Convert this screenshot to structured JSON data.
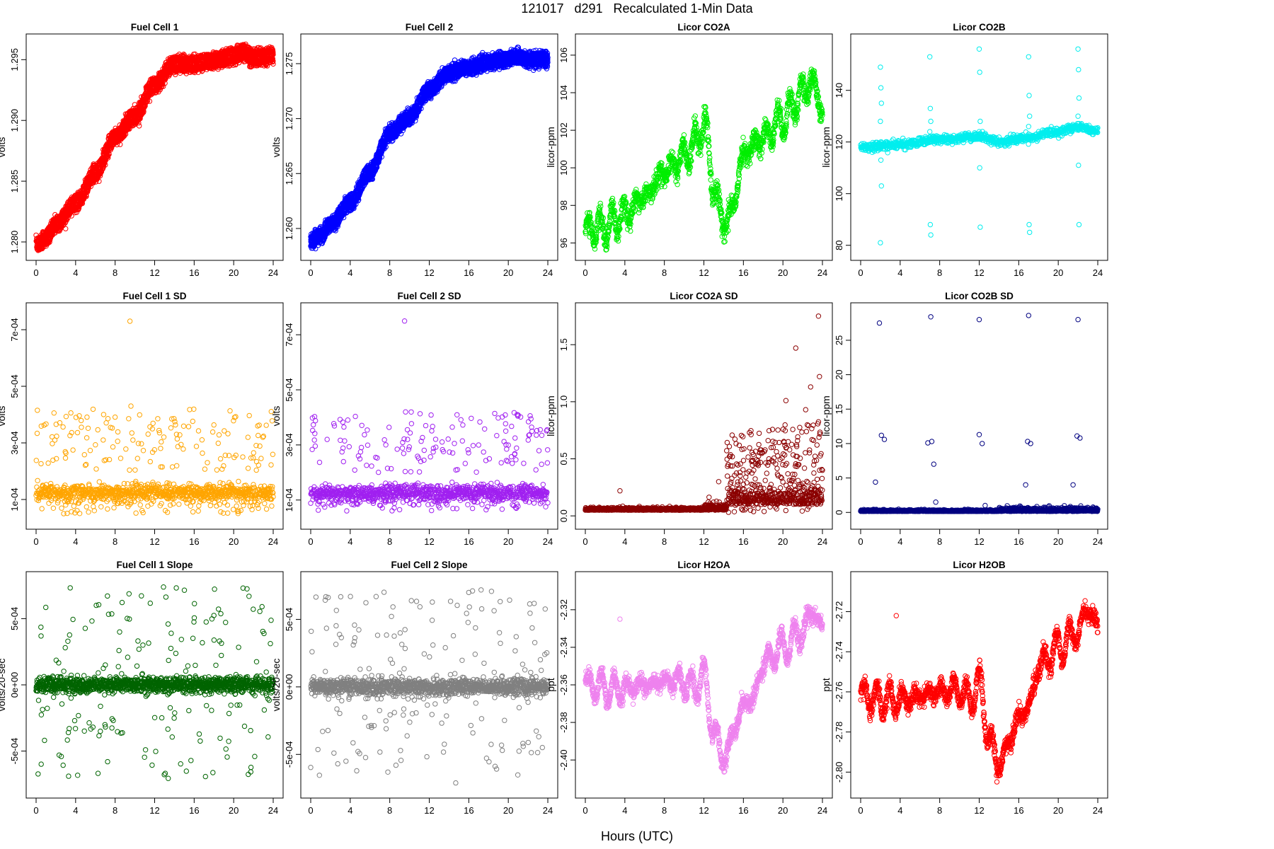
{
  "title": "121017   d291   Recalculated 1-Min Data",
  "xlabel": "Hours (UTC)",
  "chart_data": [
    {
      "type": "scatter",
      "title": "Fuel Cell 1",
      "ylabel": "volts",
      "color": "#ff0000",
      "xlim": [
        0,
        24
      ],
      "xticks": [
        0,
        4,
        8,
        12,
        16,
        20,
        24
      ],
      "ylim": [
        1.2793,
        1.2963
      ],
      "yticks": [
        1.28,
        1.285,
        1.29,
        1.295
      ],
      "ytick_labels": [
        "1.280",
        "1.285",
        "1.290",
        "1.295"
      ],
      "gen": "curve",
      "anchors": [
        [
          0,
          1.28
        ],
        [
          1,
          1.2807
        ],
        [
          2,
          1.2818
        ],
        [
          4,
          1.2835
        ],
        [
          6,
          1.286
        ],
        [
          8,
          1.289
        ],
        [
          10,
          1.2907
        ],
        [
          12,
          1.2933
        ],
        [
          14,
          1.295
        ],
        [
          16,
          1.295
        ],
        [
          18,
          1.2953
        ],
        [
          20,
          1.2957
        ],
        [
          21,
          1.296
        ],
        [
          22,
          1.2955
        ],
        [
          24,
          1.2957
        ]
      ],
      "noise": 0.0002,
      "second_offset": -0.0007,
      "point_count": 1440
    },
    {
      "type": "scatter",
      "title": "Fuel Cell 2",
      "ylabel": "volts",
      "color": "#0000ff",
      "xlim": [
        0,
        24
      ],
      "xticks": [
        0,
        4,
        8,
        12,
        16,
        20,
        24
      ],
      "ylim": [
        1.258,
        1.2768
      ],
      "yticks": [
        1.26,
        1.265,
        1.27,
        1.275
      ],
      "ytick_labels": [
        "1.260",
        "1.265",
        "1.270",
        "1.275"
      ],
      "gen": "curve",
      "anchors": [
        [
          0,
          1.2592
        ],
        [
          1,
          1.2597
        ],
        [
          2,
          1.2607
        ],
        [
          4,
          1.2627
        ],
        [
          6,
          1.2655
        ],
        [
          8,
          1.269
        ],
        [
          10,
          1.2705
        ],
        [
          12,
          1.273
        ],
        [
          14,
          1.2745
        ],
        [
          16,
          1.275
        ],
        [
          18,
          1.2755
        ],
        [
          20,
          1.2758
        ],
        [
          21,
          1.276
        ],
        [
          22,
          1.2757
        ],
        [
          24,
          1.2758
        ]
      ],
      "noise": 0.0002,
      "second_offset": -0.0007,
      "point_count": 1440
    },
    {
      "type": "scatter",
      "title": "Licor CO2A",
      "ylabel": "licor-ppm",
      "color": "#00ee00",
      "xlim": [
        0,
        24
      ],
      "xticks": [
        0,
        4,
        8,
        12,
        16,
        20,
        24
      ],
      "ylim": [
        95.6,
        106.6
      ],
      "yticks": [
        96,
        98,
        100,
        102,
        104,
        106
      ],
      "ytick_labels": [
        "96",
        "98",
        "100",
        "102",
        "104",
        "106"
      ],
      "gen": "curve",
      "anchors": [
        [
          0,
          96.7
        ],
        [
          2,
          96.8
        ],
        [
          4,
          97.5
        ],
        [
          6,
          98.5
        ],
        [
          8,
          99.8
        ],
        [
          10,
          100.6
        ],
        [
          11,
          101.2
        ],
        [
          12,
          102.4
        ],
        [
          13,
          99.0
        ],
        [
          14,
          97.0
        ],
        [
          15,
          98.0
        ],
        [
          16,
          100.8
        ],
        [
          18,
          101.6
        ],
        [
          20,
          102.6
        ],
        [
          22,
          104.0
        ],
        [
          23,
          104.6
        ],
        [
          24,
          103.0
        ]
      ],
      "osc_amp": 0.9,
      "osc_period": 1.2,
      "noise": 0.25,
      "point_count": 1440
    },
    {
      "type": "scatter",
      "title": "Licor CO2B",
      "ylabel": "licor-ppm",
      "color": "#00eeee",
      "xlim": [
        0,
        24
      ],
      "xticks": [
        0,
        4,
        8,
        12,
        16,
        20,
        24
      ],
      "ylim": [
        78,
        158
      ],
      "yticks": [
        80,
        100,
        120,
        140
      ],
      "ytick_labels": [
        "80",
        "100",
        "120",
        "140"
      ],
      "gen": "curve",
      "anchors": [
        [
          0,
          118
        ],
        [
          4,
          119
        ],
        [
          8,
          121
        ],
        [
          12,
          122
        ],
        [
          14,
          120
        ],
        [
          16,
          121
        ],
        [
          20,
          124
        ],
        [
          22,
          126
        ],
        [
          24,
          124
        ]
      ],
      "noise": 0.8,
      "spikes_at": [
        2,
        7,
        12,
        17,
        22
      ],
      "spike_values": [
        [
          149,
          141,
          135,
          128,
          113,
          103,
          81
        ],
        [
          153,
          133,
          128,
          124,
          88,
          84
        ],
        [
          156,
          147,
          128,
          124,
          110,
          87
        ],
        [
          153,
          138,
          130,
          126,
          88,
          85
        ],
        [
          156,
          148,
          137,
          130,
          111,
          88
        ]
      ],
      "point_count": 1000
    },
    {
      "type": "scatter",
      "title": "Fuel Cell 1 SD",
      "ylabel": "volts",
      "color": "#ffa500",
      "xlim": [
        0,
        24
      ],
      "xticks": [
        0,
        4,
        8,
        12,
        16,
        20,
        24
      ],
      "ylim": [
        3e-05,
        0.00076
      ],
      "yticks": [
        0.0001,
        0.0003,
        0.0005,
        0.0007
      ],
      "ytick_labels": [
        "1e-04",
        "3e-04",
        "5e-04",
        "7e-04"
      ],
      "gen": "band",
      "base": 0.000125,
      "spread": 1.5e-05,
      "upper_range": [
        0.0002,
        0.00042
      ],
      "lower_range": [
        5e-05,
        0.0001
      ],
      "outliers": [
        [
          9.5,
          0.00073
        ],
        [
          9.6,
          0.00043
        ],
        [
          9.8,
          0.00031
        ]
      ],
      "point_count": 1100
    },
    {
      "type": "scatter",
      "title": "Fuel Cell 2 SD",
      "ylabel": "volts",
      "color": "#a020f0",
      "xlim": [
        0,
        24
      ],
      "xticks": [
        0,
        4,
        8,
        12,
        16,
        20,
        24
      ],
      "ylim": [
        3e-05,
        0.00078
      ],
      "yticks": [
        0.0001,
        0.0003,
        0.0005,
        0.0007
      ],
      "ytick_labels": [
        "1e-04",
        "3e-04",
        "5e-04",
        "7e-04"
      ],
      "gen": "band",
      "base": 0.000125,
      "spread": 1.5e-05,
      "upper_range": [
        0.0002,
        0.00042
      ],
      "lower_range": [
        6e-05,
        0.0001
      ],
      "outliers": [
        [
          9.5,
          0.00075
        ],
        [
          9.6,
          0.00042
        ],
        [
          9.8,
          0.00032
        ]
      ],
      "point_count": 1100
    },
    {
      "type": "scatter",
      "title": "Licor CO2A SD",
      "ylabel": "licor-ppm",
      "color": "#8b0000",
      "xlim": [
        0,
        24
      ],
      "xticks": [
        0,
        4,
        8,
        12,
        16,
        20,
        24
      ],
      "ylim": [
        -0.03,
        1.78
      ],
      "yticks": [
        0,
        0.5,
        1,
        1.5
      ],
      "ytick_labels": [
        "0.0",
        "0.5",
        "1.0",
        "1.5"
      ],
      "gen": "step",
      "base": 0.05,
      "spread": 0.02,
      "step_at": 14.3,
      "after_base": 0.1,
      "after_range": [
        0.03,
        0.85
      ],
      "outliers": [
        [
          3.5,
          0.22
        ],
        [
          13.5,
          0.3
        ],
        [
          21.3,
          1.47
        ],
        [
          23.6,
          1.75
        ],
        [
          23.7,
          1.22
        ],
        [
          22.8,
          1.13
        ],
        [
          22.3,
          0.93
        ],
        [
          20.3,
          1.01
        ]
      ],
      "point_count": 1440
    },
    {
      "type": "scatter",
      "title": "Licor CO2B SD",
      "ylabel": "licor-ppm",
      "color": "#000080",
      "xlim": [
        0,
        24
      ],
      "xticks": [
        0,
        4,
        8,
        12,
        16,
        20,
        24
      ],
      "ylim": [
        -1,
        29
      ],
      "yticks": [
        0,
        5,
        10,
        15,
        20,
        25
      ],
      "ytick_labels": [
        "0",
        "5",
        "10",
        "15",
        "20",
        "25"
      ],
      "gen": "spiky",
      "base": 0.15,
      "spread": 0.1,
      "outliers": [
        [
          1.9,
          27.5
        ],
        [
          7.1,
          28.4
        ],
        [
          12.0,
          28.0
        ],
        [
          17.0,
          28.6
        ],
        [
          22.0,
          28.0
        ],
        [
          2.1,
          11.2
        ],
        [
          2.4,
          10.6
        ],
        [
          6.8,
          10.1
        ],
        [
          7.2,
          10.3
        ],
        [
          12.0,
          11.3
        ],
        [
          12.3,
          10.0
        ],
        [
          16.9,
          10.3
        ],
        [
          17.2,
          10.0
        ],
        [
          21.9,
          11.1
        ],
        [
          22.2,
          10.8
        ],
        [
          1.5,
          4.4
        ],
        [
          7.4,
          7.0
        ],
        [
          16.7,
          4.0
        ],
        [
          21.5,
          4.0
        ],
        [
          7.6,
          1.5
        ],
        [
          12.6,
          1.0
        ]
      ],
      "point_count": 1300
    },
    {
      "type": "scatter",
      "title": "Fuel Cell 1 Slope",
      "ylabel": "volts/20-sec",
      "color": "#006400",
      "xlim": [
        0,
        24
      ],
      "xticks": [
        0,
        4,
        8,
        12,
        16,
        20,
        24
      ],
      "ylim": [
        -0.00078,
        0.00078
      ],
      "yticks": [
        -0.0005,
        0,
        0.0005
      ],
      "ytick_labels": [
        "-5e-04",
        "0e+00",
        "5e-04"
      ],
      "gen": "slope",
      "spread": 3e-05,
      "outer": 0.00074,
      "point_count": 1440
    },
    {
      "type": "scatter",
      "title": "Fuel Cell 2 Slope",
      "ylabel": "volts/20-sec",
      "color": "#808080",
      "xlim": [
        0,
        24
      ],
      "xticks": [
        0,
        4,
        8,
        12,
        16,
        20,
        24
      ],
      "ylim": [
        -0.00075,
        0.00078
      ],
      "yticks": [
        -0.0005,
        0,
        0.0005
      ],
      "ytick_labels": [
        "-5e-04",
        "0e+00",
        "5e-04"
      ],
      "gen": "slope",
      "spread": 3e-05,
      "outer": 0.00072,
      "point_count": 1440
    },
    {
      "type": "scatter",
      "title": "Licor H2OA",
      "ylabel": "ppt",
      "color": "#ee82ee",
      "xlim": [
        0,
        24
      ],
      "xticks": [
        0,
        4,
        8,
        12,
        16,
        20,
        24
      ],
      "ylim": [
        -2.415,
        -2.305
      ],
      "yticks": [
        -2.4,
        -2.38,
        -2.36,
        -2.34,
        -2.32
      ],
      "ytick_labels": [
        "-2.40",
        "-2.38",
        "-2.36",
        "-2.34",
        "-2.32"
      ],
      "gen": "curve",
      "anchors": [
        [
          0,
          -2.359
        ],
        [
          2,
          -2.362
        ],
        [
          4,
          -2.362
        ],
        [
          6,
          -2.36
        ],
        [
          8,
          -2.358
        ],
        [
          10,
          -2.358
        ],
        [
          11,
          -2.362
        ],
        [
          12,
          -2.355
        ],
        [
          13,
          -2.385
        ],
        [
          14,
          -2.4
        ],
        [
          15,
          -2.385
        ],
        [
          16,
          -2.37
        ],
        [
          17,
          -2.368
        ],
        [
          18,
          -2.348
        ],
        [
          20,
          -2.34
        ],
        [
          22,
          -2.332
        ],
        [
          23,
          -2.32
        ],
        [
          24,
          -2.33
        ]
      ],
      "osc_amp": 0.008,
      "osc_period": 1.3,
      "noise": 0.002,
      "outliers": [
        [
          3.5,
          -2.325
        ]
      ],
      "point_count": 1440
    },
    {
      "type": "scatter",
      "title": "Licor H2OB",
      "ylabel": "ppt",
      "color": "#ff0000",
      "xlim": [
        0,
        24
      ],
      "xticks": [
        0,
        4,
        8,
        12,
        16,
        20,
        24
      ],
      "ylim": [
        -2.808,
        -2.705
      ],
      "yticks": [
        -2.8,
        -2.78,
        -2.76,
        -2.74,
        -2.72
      ],
      "ytick_labels": [
        "-2.80",
        "-2.78",
        "-2.76",
        "-2.74",
        "-2.72"
      ],
      "gen": "curve",
      "anchors": [
        [
          0,
          -2.761
        ],
        [
          2,
          -2.764
        ],
        [
          4,
          -2.764
        ],
        [
          6,
          -2.762
        ],
        [
          8,
          -2.76
        ],
        [
          10,
          -2.759
        ],
        [
          11,
          -2.764
        ],
        [
          12,
          -2.755
        ],
        [
          13,
          -2.783
        ],
        [
          14,
          -2.797
        ],
        [
          15,
          -2.785
        ],
        [
          16,
          -2.772
        ],
        [
          17,
          -2.768
        ],
        [
          18,
          -2.748
        ],
        [
          20,
          -2.738
        ],
        [
          22,
          -2.73
        ],
        [
          23,
          -2.718
        ],
        [
          24,
          -2.728
        ]
      ],
      "osc_amp": 0.008,
      "osc_period": 1.3,
      "noise": 0.002,
      "outliers": [
        [
          3.6,
          -2.722
        ]
      ],
      "point_count": 1440
    }
  ]
}
